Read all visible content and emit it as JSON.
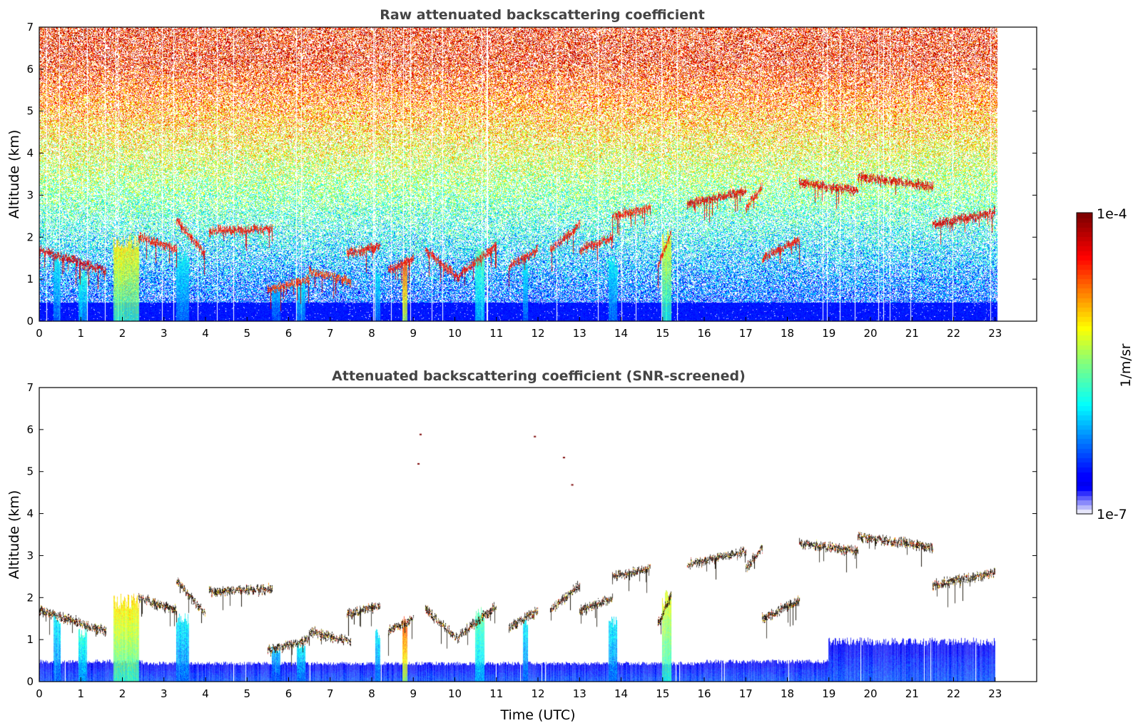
{
  "chart_data": [
    {
      "type": "heatmap",
      "title": "Raw attenuated backscattering coefficient",
      "xlabel": "",
      "ylabel": "Altitude (km)",
      "xlim": [
        0,
        24
      ],
      "ylim": [
        0,
        7
      ],
      "x_ticks": [
        "0",
        "1",
        "2",
        "3",
        "4",
        "5",
        "6",
        "7",
        "8",
        "9",
        "10",
        "11",
        "12",
        "13",
        "14",
        "15",
        "16",
        "17",
        "18",
        "19",
        "20",
        "21",
        "22",
        "23"
      ],
      "y_ticks": [
        "0",
        "1",
        "2",
        "3",
        "4",
        "5",
        "6",
        "7"
      ],
      "data_end_time": 23.05,
      "noise_floor": "strong noise increasing with altitude (blue near surface, green/yellow mid, orange/red above 5 km)",
      "cloud_layers": [
        {
          "time": [
            0.0,
            1.6
          ],
          "altitude": [
            1.7,
            1.2
          ],
          "intensity": 0.95
        },
        {
          "time": [
            2.4,
            3.3
          ],
          "altitude": [
            2.0,
            1.7
          ],
          "intensity": 0.9
        },
        {
          "time": [
            3.3,
            4.0
          ],
          "altitude": [
            2.4,
            1.6
          ],
          "intensity": 0.9
        },
        {
          "time": [
            4.1,
            5.6
          ],
          "altitude": [
            2.15,
            2.2
          ],
          "intensity": 0.9
        },
        {
          "time": [
            5.5,
            6.5
          ],
          "altitude": [
            0.75,
            1.0
          ],
          "intensity": 0.85
        },
        {
          "time": [
            6.5,
            7.5
          ],
          "altitude": [
            1.2,
            0.95
          ],
          "intensity": 0.85
        },
        {
          "time": [
            7.4,
            8.2
          ],
          "altitude": [
            1.6,
            1.8
          ],
          "intensity": 0.9
        },
        {
          "time": [
            8.4,
            9.0
          ],
          "altitude": [
            1.2,
            1.5
          ],
          "intensity": 0.9
        },
        {
          "time": [
            9.3,
            10.1
          ],
          "altitude": [
            1.7,
            1.0
          ],
          "intensity": 0.9
        },
        {
          "time": [
            10.1,
            11.0
          ],
          "altitude": [
            1.1,
            1.8
          ],
          "intensity": 0.9
        },
        {
          "time": [
            11.3,
            12.0
          ],
          "altitude": [
            1.3,
            1.7
          ],
          "intensity": 0.9
        },
        {
          "time": [
            12.3,
            13.0
          ],
          "altitude": [
            1.7,
            2.3
          ],
          "intensity": 0.9
        },
        {
          "time": [
            13.0,
            13.8
          ],
          "altitude": [
            1.7,
            2.0
          ],
          "intensity": 0.9
        },
        {
          "time": [
            13.8,
            14.7
          ],
          "altitude": [
            2.5,
            2.7
          ],
          "intensity": 0.9
        },
        {
          "time": [
            14.9,
            15.2
          ],
          "altitude": [
            1.4,
            2.1
          ],
          "intensity": 0.9
        },
        {
          "time": [
            15.6,
            17.0
          ],
          "altitude": [
            2.8,
            3.1
          ],
          "intensity": 0.95
        },
        {
          "time": [
            17.0,
            17.4
          ],
          "altitude": [
            2.7,
            3.2
          ],
          "intensity": 0.9
        },
        {
          "time": [
            17.4,
            18.3
          ],
          "altitude": [
            1.5,
            1.95
          ],
          "intensity": 0.9
        },
        {
          "time": [
            18.3,
            19.7
          ],
          "altitude": [
            3.3,
            3.1
          ],
          "intensity": 0.95
        },
        {
          "time": [
            19.7,
            21.5
          ],
          "altitude": [
            3.45,
            3.2
          ],
          "intensity": 0.95
        },
        {
          "time": [
            21.5,
            23.0
          ],
          "altitude": [
            2.3,
            2.6
          ],
          "intensity": 0.95
        }
      ],
      "precipitation_columns": [
        {
          "time": [
            1.8,
            2.4
          ],
          "top": 2.0,
          "intensity": 0.65
        },
        {
          "time": [
            0.35,
            0.5
          ],
          "top": 1.6,
          "intensity": 0.35
        },
        {
          "time": [
            0.95,
            1.15
          ],
          "top": 1.2,
          "intensity": 0.4
        },
        {
          "time": [
            3.3,
            3.6
          ],
          "top": 1.6,
          "intensity": 0.35
        },
        {
          "time": [
            5.6,
            5.8
          ],
          "top": 0.8,
          "intensity": 0.3
        },
        {
          "time": [
            6.2,
            6.4
          ],
          "top": 0.9,
          "intensity": 0.35
        },
        {
          "time": [
            8.1,
            8.2
          ],
          "top": 1.2,
          "intensity": 0.35
        },
        {
          "time": [
            8.75,
            8.85
          ],
          "top": 1.5,
          "intensity": 0.8
        },
        {
          "time": [
            10.5,
            10.7
          ],
          "top": 1.7,
          "intensity": 0.45
        },
        {
          "time": [
            11.65,
            11.75
          ],
          "top": 1.5,
          "intensity": 0.35
        },
        {
          "time": [
            13.7,
            13.9
          ],
          "top": 1.5,
          "intensity": 0.35
        },
        {
          "time": [
            15.0,
            15.2
          ],
          "top": 2.1,
          "intensity": 0.6
        }
      ]
    },
    {
      "type": "heatmap",
      "title": "Attenuated backscattering coefficient (SNR-screened)",
      "xlabel": "Time (UTC)",
      "ylabel": "Altitude (km)",
      "xlim": [
        0,
        24
      ],
      "ylim": [
        0,
        7
      ],
      "x_ticks": [
        "0",
        "1",
        "2",
        "3",
        "4",
        "5",
        "6",
        "7",
        "8",
        "9",
        "10",
        "11",
        "12",
        "13",
        "14",
        "15",
        "16",
        "17",
        "18",
        "19",
        "20",
        "21",
        "22",
        "23"
      ],
      "y_ticks": [
        "0",
        "1",
        "2",
        "3",
        "4",
        "5",
        "6",
        "7"
      ],
      "data_end_time": 23.05,
      "screened_surface_layer": [
        {
          "time": [
            0.0,
            2.5
          ],
          "top": 0.5
        },
        {
          "time": [
            2.5,
            16.0
          ],
          "top": 0.45
        },
        {
          "time": [
            16.0,
            19.0
          ],
          "top": 0.5
        },
        {
          "time": [
            19.0,
            23.0
          ],
          "top": 1.0
        }
      ],
      "isolated_points": [
        {
          "time": 9.15,
          "altitude": 5.9
        },
        {
          "time": 9.1,
          "altitude": 5.2
        },
        {
          "time": 11.9,
          "altitude": 5.85
        },
        {
          "time": 12.6,
          "altitude": 5.35
        },
        {
          "time": 12.8,
          "altitude": 4.7
        }
      ]
    }
  ],
  "colorbar": {
    "min_label": "1e-7",
    "max_label": "1e-4",
    "unit": "1/m/sr",
    "colormap": "jet"
  }
}
